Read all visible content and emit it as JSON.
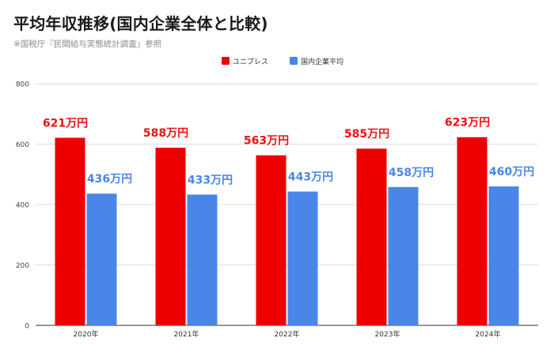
{
  "chart_data": {
    "type": "bar",
    "title": "平均年収推移(国内企業全体と比較)",
    "subtitle": "※国税庁『民間給与実態統計調査』参照",
    "categories": [
      "2020年",
      "2021年",
      "2022年",
      "2023年",
      "2024年"
    ],
    "series": [
      {
        "name": "ユニプレス",
        "color": "#ee0000",
        "label_color": "#ee1111",
        "values": [
          621,
          588,
          563,
          585,
          623
        ],
        "labels": [
          "621万円",
          "588万円",
          "563万円",
          "585万円",
          "623万円"
        ]
      },
      {
        "name": "国内企業平均",
        "color": "#4a86e8",
        "label_color": "#4a86e8",
        "values": [
          436,
          433,
          443,
          458,
          460
        ],
        "labels": [
          "436万円",
          "433万円",
          "443万円",
          "458万円",
          "460万円"
        ]
      }
    ],
    "ylim": [
      0,
      800
    ],
    "yticks": [
      0,
      200,
      400,
      600,
      800
    ],
    "grid": true,
    "legend_position": "top-center",
    "xlabel": "",
    "ylabel": ""
  }
}
